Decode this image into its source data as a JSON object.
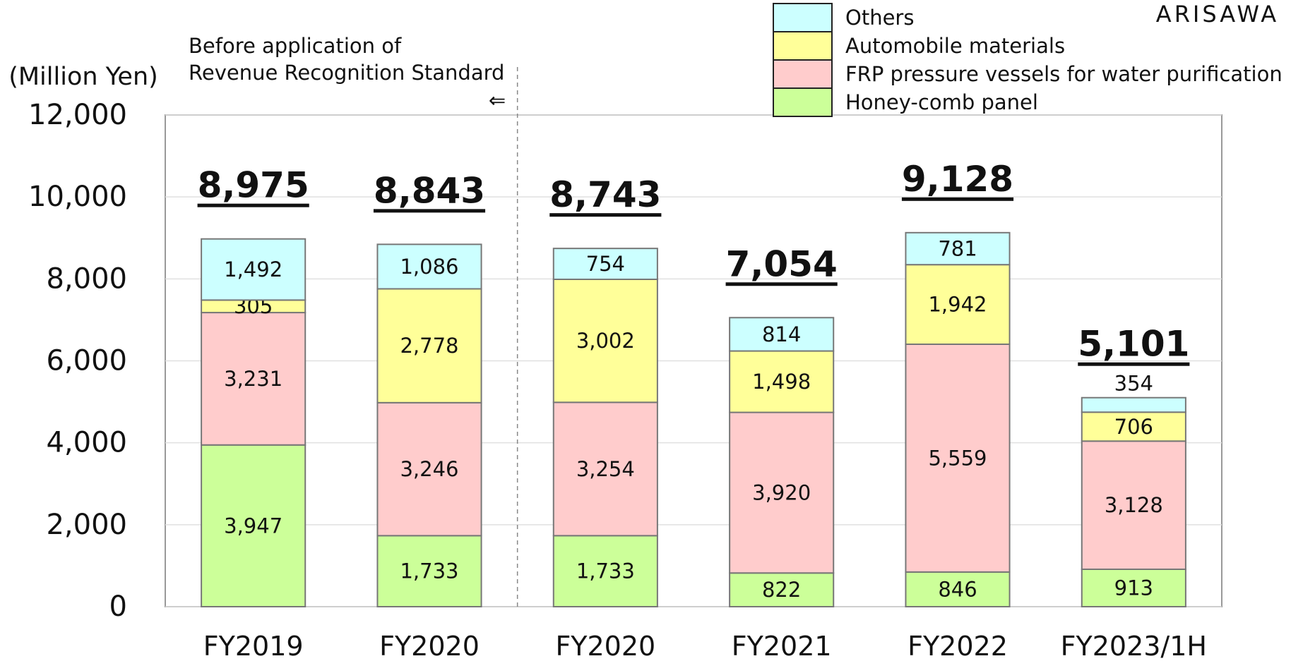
{
  "chart_data": {
    "type": "stacked-bar",
    "brand": "ARISAWA",
    "y_label": "(Million Yen)",
    "annotations": [
      "Before application of",
      "Revenue Recognition Standard",
      "⇐"
    ],
    "categories": [
      "FY2019",
      "FY2020",
      "FY2020",
      "FY2021",
      "FY2022",
      "FY2023/1H"
    ],
    "series": [
      {
        "name": "Honey-comb panel",
        "color": "#ccff99",
        "values": [
          3947,
          1733,
          1733,
          822,
          846,
          913
        ],
        "value_labels": [
          "3,947",
          "1,733",
          "1,733",
          "822",
          "846",
          "913"
        ]
      },
      {
        "name": "FRP pressure vessels for water purification",
        "color": "#ffcccc",
        "values": [
          3231,
          3246,
          3254,
          3920,
          5559,
          3128
        ],
        "value_labels": [
          "3,231",
          "3,246",
          "3,254",
          "3,920",
          "5,559",
          "3,128"
        ]
      },
      {
        "name": "Automobile materials",
        "color": "#ffff99",
        "values": [
          305,
          2778,
          3002,
          1498,
          1942,
          706
        ],
        "value_labels": [
          "305",
          "2,778",
          "3,002",
          "1,498",
          "1,942",
          "706"
        ]
      },
      {
        "name": "Others",
        "color": "#ccffff",
        "values": [
          1492,
          1086,
          754,
          814,
          781,
          354
        ],
        "value_labels": [
          "1,492",
          "1,086",
          "754",
          "814",
          "781",
          "354"
        ]
      }
    ],
    "totals": [
      8975,
      8843,
      8743,
      7054,
      9128,
      5101
    ],
    "total_labels": [
      "8,975",
      "8,843",
      "8,743",
      "7,054",
      "9,128",
      "5,101"
    ],
    "ylim": [
      0,
      12000
    ],
    "yticks": [
      0,
      {
        "value": 2000,
        "label": "2,000"
      },
      {
        "value": 4000,
        "label": "4,000"
      },
      {
        "value": 6000,
        "label": "6,000"
      },
      {
        "value": 8000,
        "label": "8,000"
      },
      {
        "value": 10000,
        "label": "10,000"
      },
      {
        "value": 12000,
        "label": "12,000"
      }
    ],
    "grid": true
  }
}
